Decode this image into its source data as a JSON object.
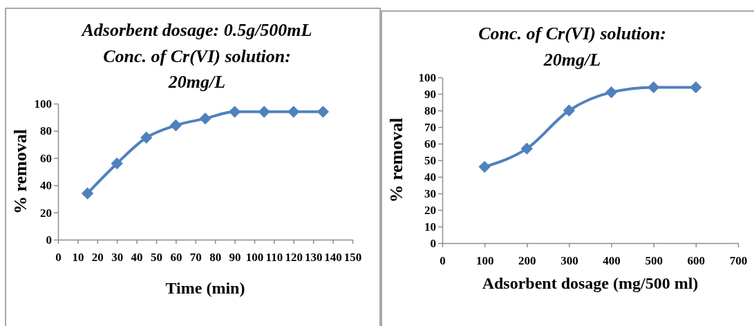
{
  "chart_data": [
    {
      "type": "line",
      "title": "Adsorbent dosage: 0.5g/500mL\nConc. of Cr(VI) solution:\n20mg/L",
      "xlabel": "Time (min)",
      "ylabel": "% removal",
      "x": [
        15,
        30,
        45,
        60,
        75,
        90,
        105,
        120,
        135
      ],
      "series": [
        {
          "color": "#4f81bd",
          "values": [
            34,
            56,
            75,
            84,
            89,
            94,
            94,
            94,
            94
          ]
        }
      ],
      "xlim": [
        0,
        150
      ],
      "xticks": [
        0,
        10,
        20,
        30,
        40,
        50,
        60,
        70,
        80,
        90,
        100,
        110,
        120,
        130,
        140,
        150
      ],
      "ylim": [
        0,
        100
      ],
      "yticks": [
        0,
        20,
        40,
        60,
        80,
        100
      ],
      "marker": "diamond",
      "line_style": "solid"
    },
    {
      "type": "line",
      "title": "Conc. of Cr(VI) solution:\n20mg/L",
      "xlabel": "Adsorbent dosage (mg/500 ml)",
      "ylabel": "% removal",
      "x": [
        100,
        200,
        300,
        400,
        500,
        600
      ],
      "series": [
        {
          "color": "#4f81bd",
          "values": [
            46,
            57,
            80,
            91,
            94,
            94
          ]
        }
      ],
      "xlim": [
        0,
        700
      ],
      "xticks": [
        0,
        100,
        200,
        300,
        400,
        500,
        600,
        700
      ],
      "ylim": [
        0,
        100
      ],
      "yticks": [
        0,
        10,
        20,
        30,
        40,
        50,
        60,
        70,
        80,
        90,
        100
      ],
      "marker": "diamond",
      "line_style": "solid"
    }
  ]
}
